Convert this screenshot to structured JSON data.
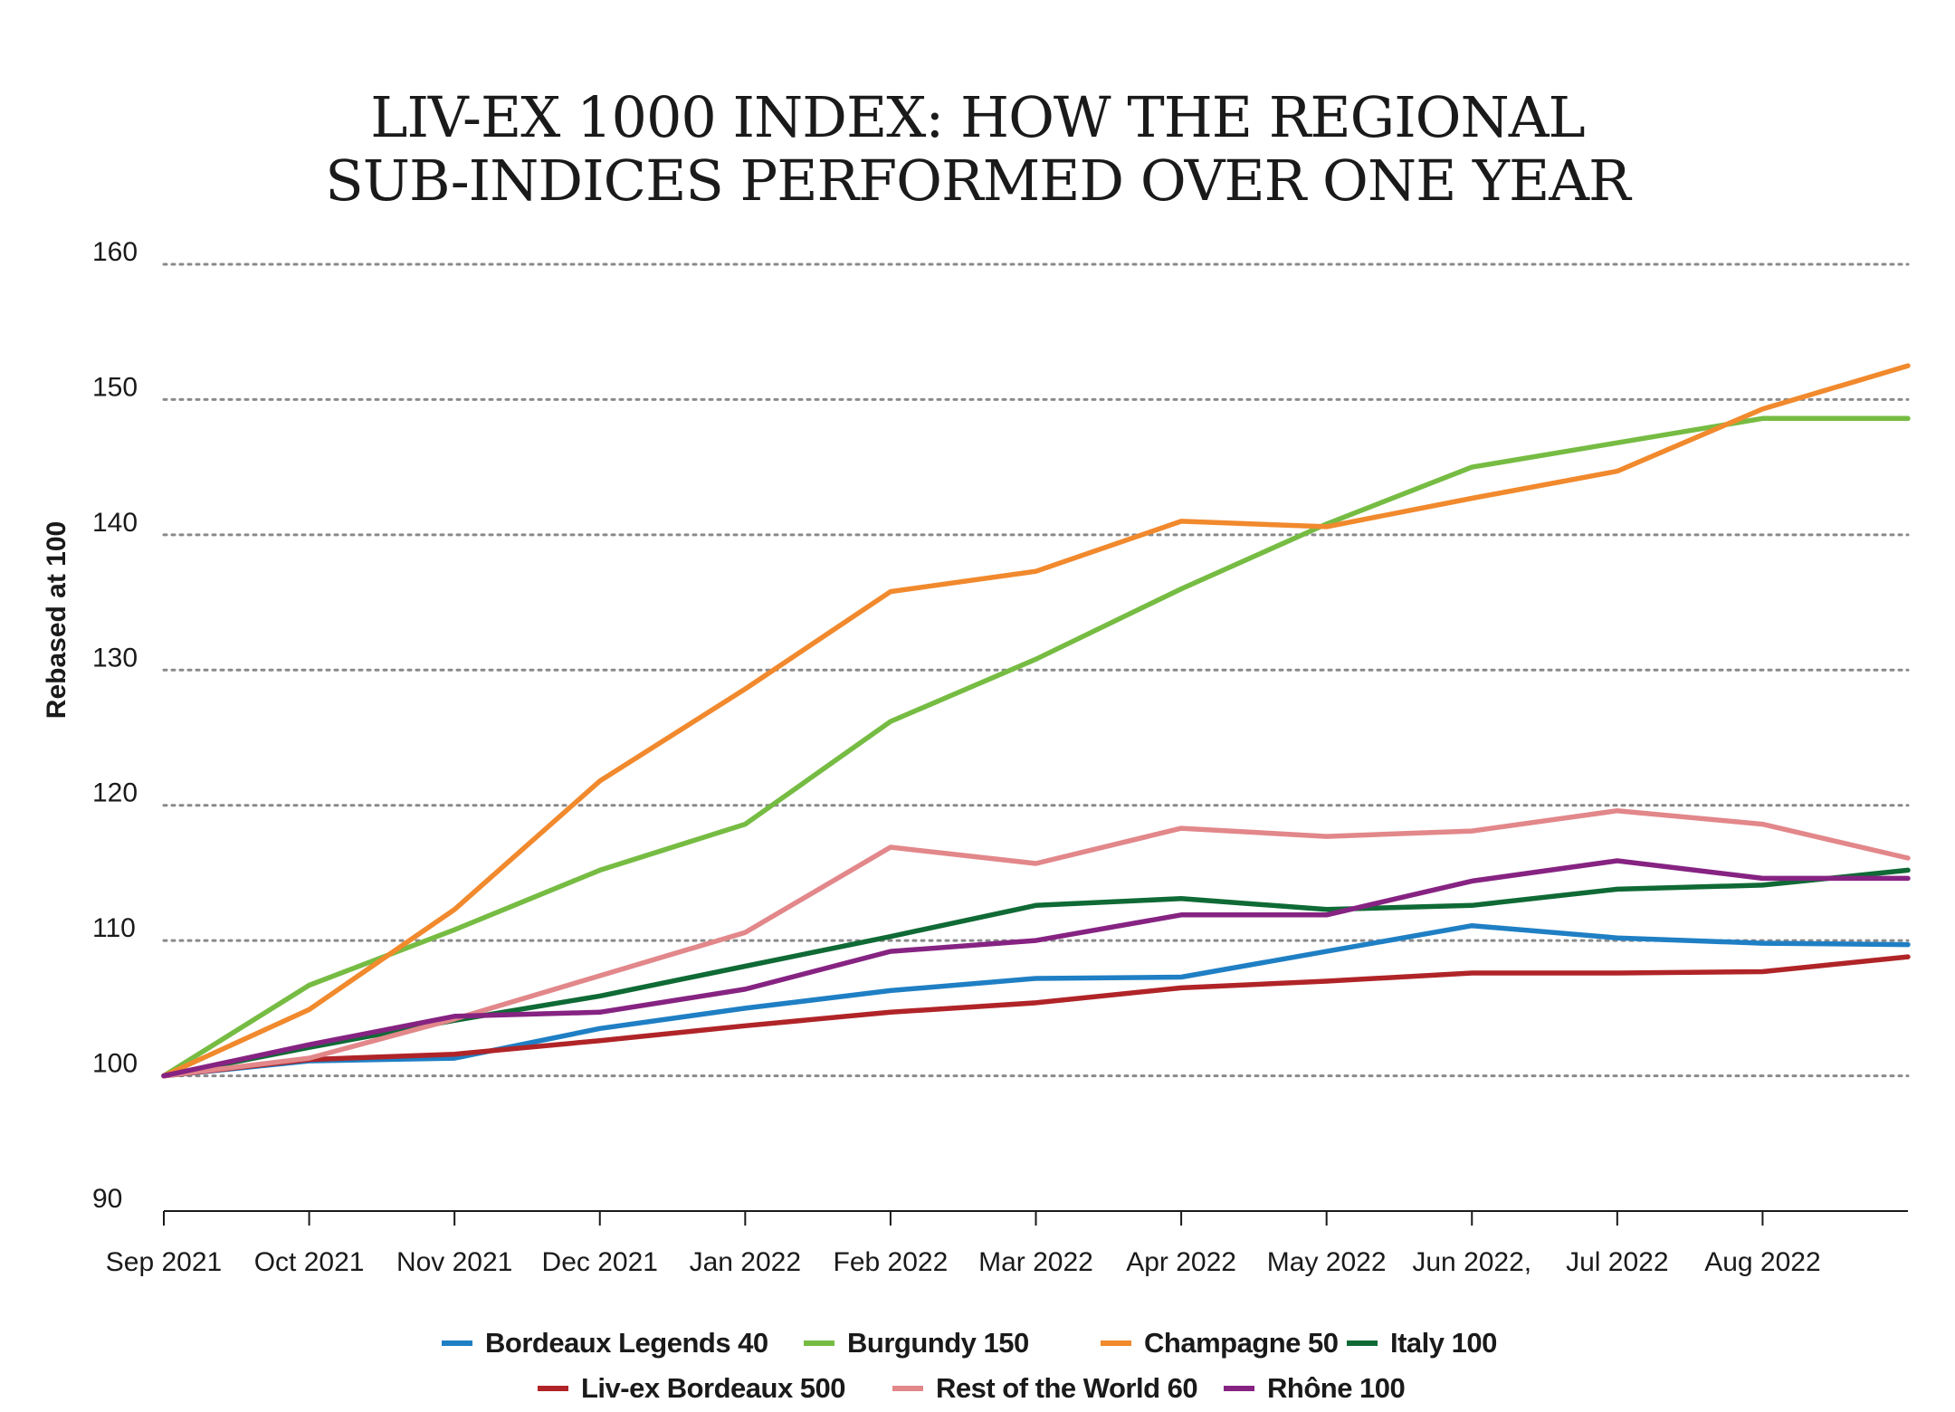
{
  "chart_data": {
    "type": "line",
    "title": "LIV-EX 1000 INDEX: HOW THE REGIONAL SUB-INDICES PERFORMED OVER ONE YEAR",
    "title_lines": [
      "LIV-EX 1000 INDEX: HOW THE REGIONAL",
      "SUB-INDICES PERFORMED OVER ONE YEAR"
    ],
    "xlabel": "",
    "ylabel": "Rebased at 100",
    "ylim": [
      90,
      160
    ],
    "yticks": [
      90,
      100,
      110,
      120,
      130,
      140,
      150,
      160
    ],
    "gridlines": [
      100,
      110,
      120,
      130,
      140,
      150,
      160
    ],
    "grid": "dotted horizontal",
    "categories": [
      "Sep 2021",
      "Oct 2021",
      "Nov 2021",
      "Dec 2021",
      "Jan 2022",
      "Feb 2022",
      "Mar 2022",
      "Apr 2022",
      "May 2022",
      "Jun 2022,",
      "Jul 2022",
      "Aug 2022",
      ""
    ],
    "legend_position": "bottom",
    "series": [
      {
        "name": "Bordeaux Legends 40",
        "color": "#1f7fc4",
        "values": [
          100,
          101.1,
          101.3,
          103.5,
          105,
          106.3,
          107.2,
          107.3,
          109.2,
          111.1,
          110.2,
          109.8,
          109.7
        ]
      },
      {
        "name": "Burgundy 150",
        "color": "#76bc43",
        "values": [
          100,
          106.7,
          110.8,
          115.2,
          118.6,
          126.2,
          130.8,
          136,
          140.8,
          145,
          146.8,
          148.6,
          148.6
        ]
      },
      {
        "name": "Champagne 50",
        "color": "#f1892d",
        "values": [
          100,
          104.9,
          112.3,
          121.8,
          128.6,
          135.8,
          137.3,
          141,
          140.6,
          142.7,
          144.7,
          149.3,
          152.5
        ]
      },
      {
        "name": "Italy 100",
        "color": "#0f6a35",
        "values": [
          100,
          102.1,
          104.1,
          105.9,
          108.1,
          110.3,
          112.6,
          113.1,
          112.3,
          112.6,
          113.8,
          114.1,
          115.2
        ]
      },
      {
        "name": "Liv-ex Bordeaux 500",
        "color": "#b02428",
        "values": [
          100,
          101.2,
          101.6,
          102.6,
          103.7,
          104.7,
          105.4,
          106.5,
          107,
          107.6,
          107.6,
          107.7,
          108.8
        ]
      },
      {
        "name": "Rest of the World 60",
        "color": "#e2878a",
        "values": [
          100,
          101.3,
          104.2,
          107.4,
          110.6,
          116.9,
          115.7,
          118.3,
          117.7,
          118.1,
          119.6,
          118.6,
          116.1
        ]
      },
      {
        "name": "Rhône 100",
        "color": "#862382",
        "values": [
          100,
          102.3,
          104.4,
          104.7,
          106.4,
          109.2,
          110,
          111.9,
          111.9,
          114.4,
          115.9,
          114.6,
          114.6
        ]
      }
    ],
    "legend_rows": [
      [
        "Bordeaux Legends 40",
        "Burgundy 150",
        "Champagne 50",
        "Italy 100"
      ],
      [
        "Liv-ex Bordeaux 500",
        "Rest of the World 60",
        "Rhône 100"
      ]
    ]
  }
}
